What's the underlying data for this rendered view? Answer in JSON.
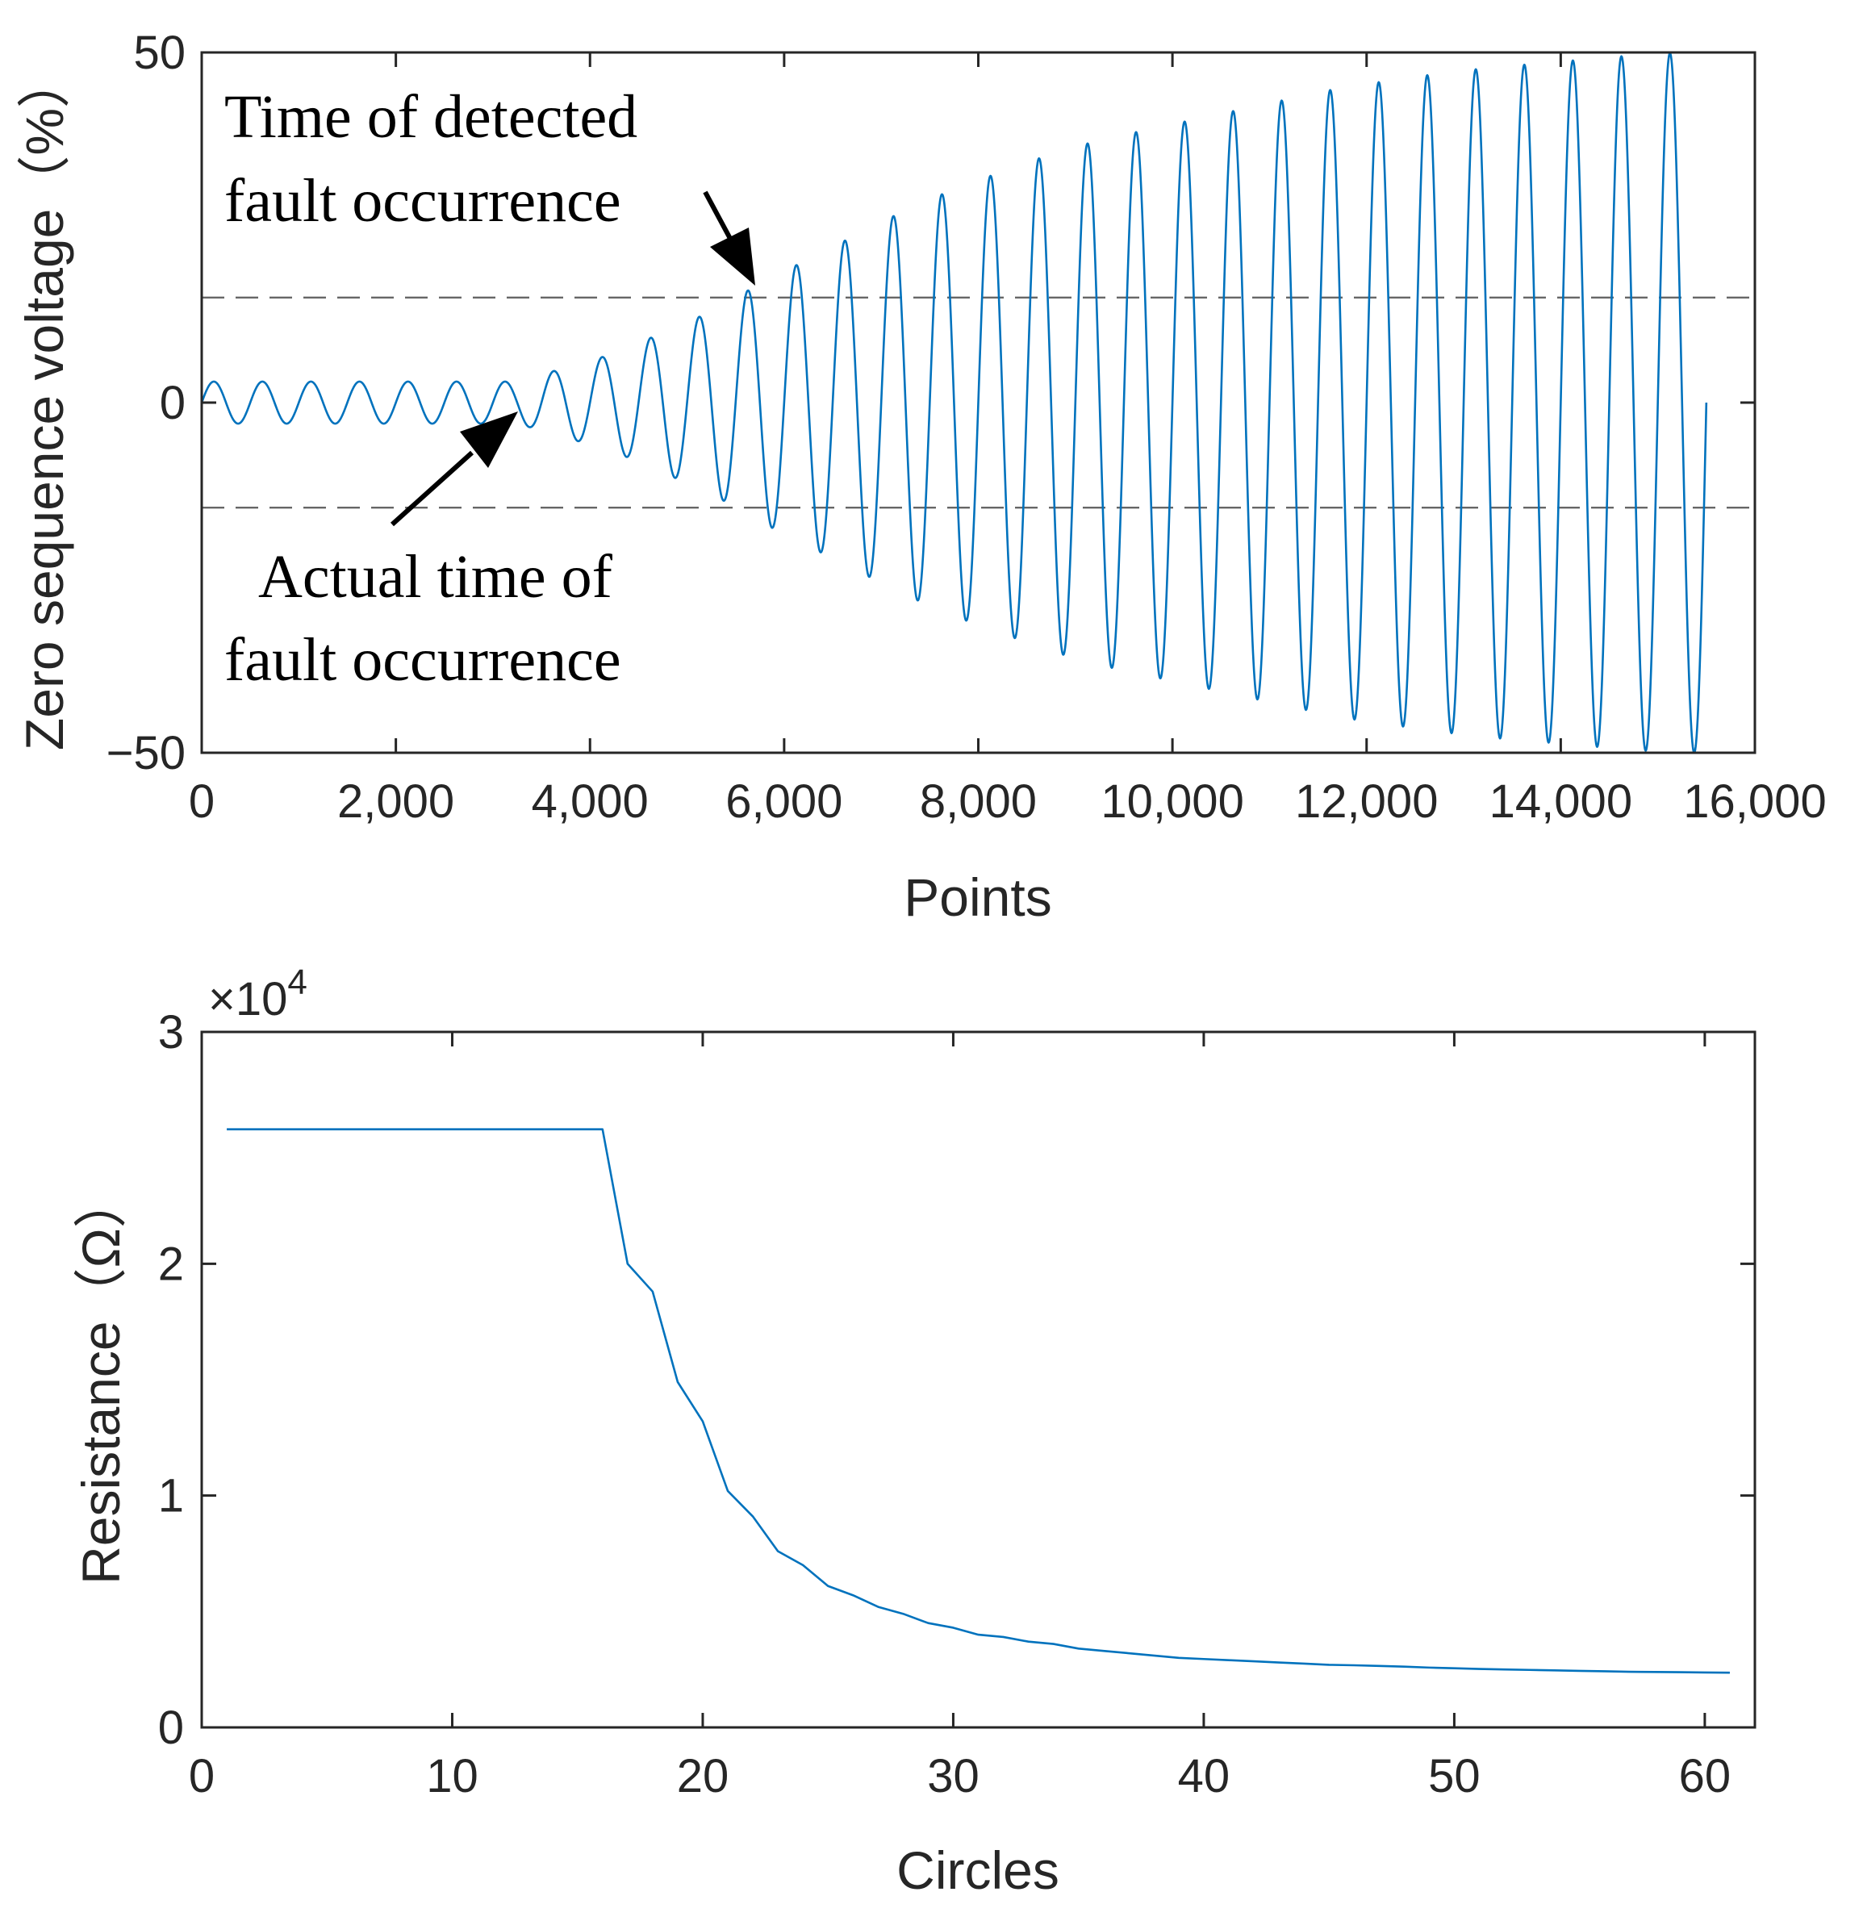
{
  "chart_data": [
    {
      "type": "line",
      "title": "",
      "xlabel": "Points",
      "ylabel": "Zero sequence voltage（%）",
      "xlim": [
        0,
        16000
      ],
      "ylim": [
        -50,
        50
      ],
      "xticks": [
        0,
        2000,
        4000,
        6000,
        8000,
        10000,
        12000,
        14000,
        16000
      ],
      "xtick_labels": [
        "0",
        "2,000",
        "4,000",
        "6,000",
        "8,000",
        "10,000",
        "12,000",
        "14,000",
        "16,000"
      ],
      "yticks": [
        -50,
        0,
        50
      ],
      "ytick_labels": [
        "−50",
        "0",
        "50"
      ],
      "series_color": "#0072BD",
      "signal": {
        "description_of_model": "sinusoid, period 500 points; amplitude 3 until fault at ~3250 points, then grows toward 50",
        "period_points": 500,
        "x_end": 15500,
        "amplitude_breakpoints": [
          {
            "x": 0,
            "amp": 3
          },
          {
            "x": 3250,
            "amp": 3
          },
          {
            "x": 4250,
            "amp": 7
          },
          {
            "x": 5250,
            "amp": 13
          },
          {
            "x": 5750,
            "amp": 17
          },
          {
            "x": 6250,
            "amp": 20.5
          },
          {
            "x": 6750,
            "amp": 24
          },
          {
            "x": 7250,
            "amp": 27.5
          },
          {
            "x": 7750,
            "amp": 30.5
          },
          {
            "x": 8250,
            "amp": 33
          },
          {
            "x": 8750,
            "amp": 35.5
          },
          {
            "x": 9250,
            "amp": 37.5
          },
          {
            "x": 9750,
            "amp": 39
          },
          {
            "x": 10250,
            "amp": 40.5
          },
          {
            "x": 10750,
            "amp": 42
          },
          {
            "x": 11250,
            "amp": 43.5
          },
          {
            "x": 11750,
            "amp": 45
          },
          {
            "x": 12250,
            "amp": 46
          },
          {
            "x": 12750,
            "amp": 47
          },
          {
            "x": 13250,
            "amp": 47.8
          },
          {
            "x": 13750,
            "amp": 48.4
          },
          {
            "x": 14250,
            "amp": 49
          },
          {
            "x": 14750,
            "amp": 49.6
          },
          {
            "x": 15250,
            "amp": 50
          },
          {
            "x": 15500,
            "amp": 50
          }
        ]
      },
      "threshold_lines": [
        15,
        -15
      ],
      "annotations": [
        {
          "lines": [
            "Time of detected",
            "fault occurrence"
          ],
          "arrow_to": [
            5700,
            17
          ]
        },
        {
          "lines": [
            "Actual time of",
            "fault occurrence"
          ],
          "arrow_to": [
            3250,
            -3
          ]
        }
      ]
    },
    {
      "type": "line",
      "title": "",
      "xlabel": "Circles",
      "ylabel": "Resistance（Ω）",
      "xlim": [
        0,
        62
      ],
      "ylim": [
        0,
        30000
      ],
      "xticks": [
        0,
        10,
        20,
        30,
        40,
        50,
        60
      ],
      "xtick_labels": [
        "0",
        "10",
        "20",
        "30",
        "40",
        "50",
        "60"
      ],
      "yticks": [
        0,
        10000,
        20000,
        30000
      ],
      "ytick_labels": [
        "0",
        "1",
        "2",
        "3"
      ],
      "y_multiplier_label": {
        "prefix": "×10",
        "exponent": "4"
      },
      "series_color": "#0072BD",
      "x": [
        1,
        16,
        17,
        18,
        19,
        20,
        21,
        22,
        23,
        24,
        25,
        26,
        27,
        28,
        29,
        30,
        31,
        32,
        33,
        34,
        35,
        36,
        37,
        38,
        39,
        40,
        41,
        42,
        43,
        44,
        45,
        46,
        47,
        48,
        49,
        50,
        51,
        52,
        53,
        54,
        55,
        56,
        57,
        58,
        59,
        60,
        61
      ],
      "values": [
        25800,
        25800,
        20000,
        18800,
        14900,
        13200,
        10200,
        9100,
        7600,
        7000,
        6100,
        5700,
        5200,
        4900,
        4500,
        4300,
        4000,
        3900,
        3700,
        3600,
        3400,
        3300,
        3200,
        3100,
        3000,
        2950,
        2900,
        2850,
        2800,
        2750,
        2700,
        2680,
        2650,
        2620,
        2580,
        2550,
        2520,
        2500,
        2480,
        2460,
        2440,
        2420,
        2400,
        2390,
        2380,
        2370,
        2360
      ]
    }
  ]
}
